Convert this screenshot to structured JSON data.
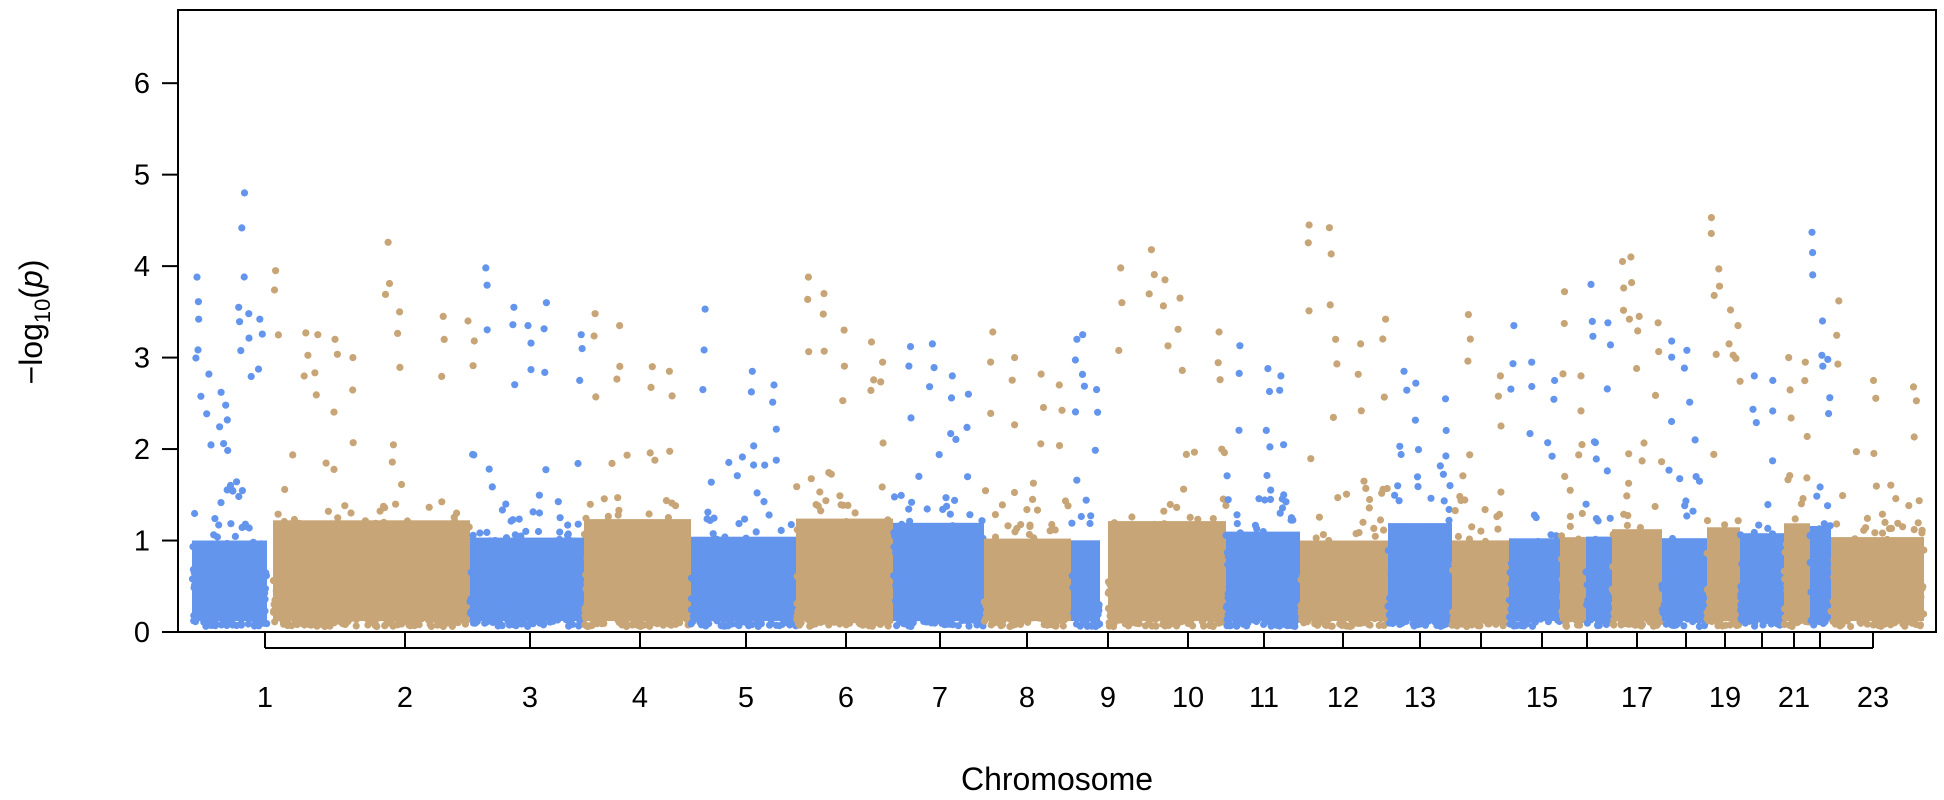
{
  "chart_data": {
    "type": "scatter",
    "subtype": "manhattan",
    "title": "",
    "xlabel": "Chromosome",
    "ylabel_prefix": "−log",
    "ylabel_sub": "10",
    "ylabel_open": "(",
    "ylabel_var": "p",
    "ylabel_close": ")",
    "ylim": [
      0,
      6.8
    ],
    "yticks": [
      "0",
      "1",
      "2",
      "3",
      "4",
      "5",
      "6"
    ],
    "xtick_labels": [
      "1",
      "2",
      "3",
      "4",
      "5",
      "6",
      "7",
      "8",
      "9",
      "10",
      "11",
      "12",
      "13",
      "15",
      "17",
      "19",
      "21",
      "23"
    ],
    "colors": {
      "odd": "#6495ED",
      "even": "#C8A576"
    },
    "grid": false,
    "legend": "none",
    "chromosomes": [
      {
        "chr": 1,
        "size": 247,
        "top_peaks": [
          3.88,
          3.42,
          2.82,
          2.62,
          2.48,
          4.8,
          3.55,
          3.48,
          3.42
        ]
      },
      {
        "chr": 2,
        "size": 243,
        "top_peaks": [
          3.95,
          3.27,
          3.25,
          3.2,
          3.0,
          4.26,
          3.5,
          3.45,
          3.4
        ]
      },
      {
        "chr": 3,
        "size": 199,
        "top_peaks": [
          3.98,
          3.55,
          3.35,
          3.6,
          3.25
        ]
      },
      {
        "chr": 4,
        "size": 191,
        "top_peaks": [
          3.48,
          3.35,
          2.9,
          2.85
        ]
      },
      {
        "chr": 5,
        "size": 181,
        "top_peaks": [
          3.53,
          2.85,
          2.7
        ]
      },
      {
        "chr": 6,
        "size": 171,
        "top_peaks": [
          3.88,
          3.7,
          3.3,
          3.17,
          2.95
        ]
      },
      {
        "chr": 7,
        "size": 159,
        "top_peaks": [
          3.12,
          3.15,
          2.8,
          2.6
        ]
      },
      {
        "chr": 8,
        "size": 146,
        "top_peaks": [
          3.28,
          3.0,
          2.82,
          2.7
        ]
      },
      {
        "chr": 9,
        "size": 140,
        "top_peaks": [
          3.2,
          3.25,
          2.65
        ]
      },
      {
        "chr": 10,
        "size": 135,
        "top_peaks": [
          3.98,
          4.18,
          3.85,
          3.65,
          3.28
        ]
      },
      {
        "chr": 11,
        "size": 135,
        "top_peaks": [
          3.13,
          2.88,
          2.8
        ]
      },
      {
        "chr": 12,
        "size": 132,
        "top_peaks": [
          4.45,
          4.42,
          3.2,
          3.15,
          3.42
        ]
      },
      {
        "chr": 13,
        "size": 114,
        "top_peaks": [
          2.85,
          2.72,
          2.55
        ]
      },
      {
        "chr": 14,
        "size": 106,
        "top_peaks": [
          3.47,
          2.8
        ]
      },
      {
        "chr": 15,
        "size": 100,
        "top_peaks": [
          3.35,
          2.95,
          2.75
        ]
      },
      {
        "chr": 16,
        "size": 89,
        "top_peaks": [
          3.72,
          2.8
        ]
      },
      {
        "chr": 17,
        "size": 79,
        "top_peaks": [
          3.8,
          3.38
        ]
      },
      {
        "chr": 18,
        "size": 76,
        "top_peaks": [
          4.05,
          4.1,
          3.45,
          3.38
        ]
      },
      {
        "chr": 19,
        "size": 64,
        "top_peaks": [
          3.18,
          3.08,
          2.1
        ]
      },
      {
        "chr": 20,
        "size": 62,
        "top_peaks": [
          4.53,
          3.97,
          3.52,
          3.35
        ]
      },
      {
        "chr": 21,
        "size": 47,
        "top_peaks": [
          2.8,
          2.75
        ]
      },
      {
        "chr": 22,
        "size": 50,
        "top_peaks": [
          3.0,
          2.95
        ]
      },
      {
        "chr": 23,
        "size": 60,
        "top_peaks": [
          4.37,
          3.4,
          2.98
        ]
      },
      {
        "chr": 24,
        "size": 100,
        "top_peaks": [
          3.62,
          2.75,
          2.68
        ]
      }
    ]
  }
}
